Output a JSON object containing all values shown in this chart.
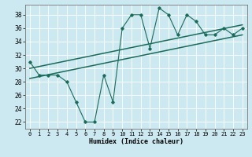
{
  "xlabel": "Humidex (Indice chaleur)",
  "bg_color": "#cce8f0",
  "grid_color": "#ffffff",
  "line_color": "#1a6b5a",
  "x_data": [
    0,
    1,
    2,
    3,
    4,
    5,
    6,
    7,
    8,
    9,
    10,
    11,
    12,
    13,
    14,
    15,
    16,
    17,
    18,
    19,
    20,
    21,
    22,
    23
  ],
  "y_main": [
    31,
    29,
    29,
    29,
    28,
    25,
    22,
    22,
    29,
    25,
    36,
    38,
    38,
    33,
    39,
    38,
    35,
    38,
    37,
    35,
    35,
    36,
    35,
    36
  ],
  "trend1_x": [
    0,
    23
  ],
  "trend1_y": [
    30.0,
    36.5
  ],
  "trend2_x": [
    0,
    23
  ],
  "trend2_y": [
    28.5,
    35.0
  ],
  "ylim": [
    21,
    39.5
  ],
  "xlim": [
    -0.5,
    23.5
  ],
  "yticks": [
    22,
    24,
    26,
    28,
    30,
    32,
    34,
    36,
    38
  ],
  "xticks": [
    0,
    1,
    2,
    3,
    4,
    5,
    6,
    7,
    8,
    9,
    10,
    11,
    12,
    13,
    14,
    15,
    16,
    17,
    18,
    19,
    20,
    21,
    22,
    23
  ],
  "xlabel_fontsize": 6,
  "tick_fontsize": 5,
  "linewidth": 0.8,
  "marker_size": 1.8
}
